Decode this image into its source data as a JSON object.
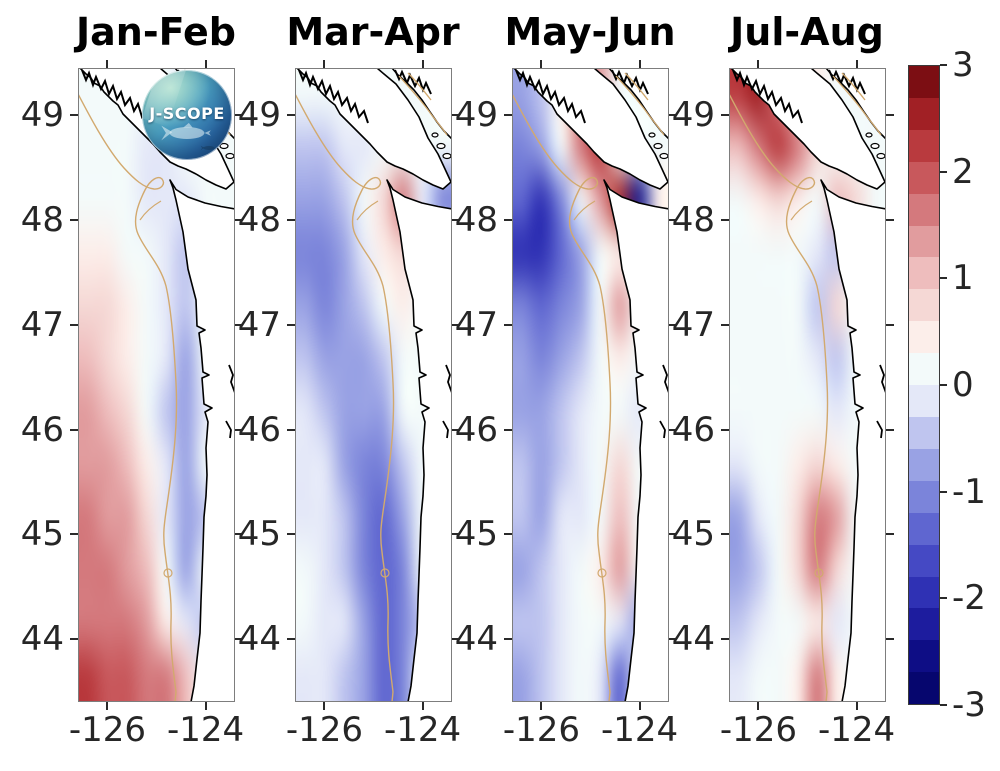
{
  "figure": {
    "background": "#ffffff"
  },
  "logo": {
    "text": "J-SCOPE"
  },
  "axes": {
    "lat_tick_values": [
      49,
      48,
      47,
      46,
      45,
      44
    ],
    "lat_tick_labels": [
      "49",
      "48",
      "47",
      "46",
      "45",
      "44"
    ],
    "lon_tick_values": [
      -126,
      -124
    ],
    "lon_tick_labels": [
      "-126",
      "-124"
    ],
    "lat_range": [
      43.4,
      49.45
    ],
    "lon_range": [
      -126.6,
      -123.4
    ]
  },
  "colorbar": {
    "min": -3,
    "max": 3,
    "tick_values": [
      3,
      2,
      1,
      0,
      -1,
      -2,
      -3
    ],
    "tick_labels": [
      "3",
      "2",
      "1",
      "0",
      "-1",
      "-2",
      "-3"
    ],
    "colors_low_to_high": [
      "#06066e",
      "#0e0d85",
      "#1d1c9e",
      "#2f31b4",
      "#4549c4",
      "#5f66d0",
      "#7b84da",
      "#99a2e4",
      "#bfc5ef",
      "#e4e8f8",
      "#f3fafa",
      "#fceeea",
      "#f5d8d5",
      "#eebdbd",
      "#e19c9e",
      "#d4797d",
      "#c8585c",
      "#b93a3e",
      "#a12025",
      "#7c0e13"
    ]
  },
  "chart_data": {
    "type": "heatmap",
    "subtype": "geographic-anomaly-maps",
    "colorbar_range": [
      -3,
      3
    ],
    "contour_step": 0.3,
    "legend_position": "right",
    "grid_lons": [
      -126.4,
      -126.0,
      -125.6,
      -125.2,
      -124.8,
      -124.4,
      -124.0,
      -123.6
    ],
    "grid_lats": [
      49.2,
      48.7,
      48.2,
      47.7,
      47.2,
      46.7,
      46.2,
      45.7,
      45.2,
      44.7,
      44.2,
      43.7
    ],
    "panels": [
      {
        "title": "Jan-Feb",
        "grid": [
          [
            0.1,
            0.1,
            0.05,
            0,
            0,
            -0.1,
            null,
            null
          ],
          [
            0.2,
            0.15,
            0.1,
            -0.1,
            -0.2,
            null,
            null,
            null
          ],
          [
            0.3,
            0.2,
            0.1,
            -0.1,
            -0.3,
            -0.3,
            0.05,
            0.05
          ],
          [
            0.5,
            0.4,
            0.2,
            0.1,
            -0.2,
            -0.4,
            null,
            null
          ],
          [
            0.8,
            0.6,
            0.4,
            0.1,
            -0.3,
            -0.5,
            null,
            null
          ],
          [
            1.0,
            0.8,
            0.5,
            0.1,
            -0.3,
            -0.6,
            null,
            null
          ],
          [
            1.2,
            1.0,
            0.7,
            0.2,
            -0.4,
            -0.7,
            -0.3,
            null
          ],
          [
            1.3,
            1.2,
            0.9,
            0.4,
            -0.3,
            -0.8,
            null,
            null
          ],
          [
            1.5,
            1.4,
            1.2,
            0.6,
            -0.2,
            -0.8,
            -0.4,
            null
          ],
          [
            1.6,
            1.6,
            1.4,
            0.9,
            0.2,
            -0.6,
            null,
            null
          ],
          [
            1.8,
            1.7,
            1.6,
            1.2,
            0.5,
            -0.3,
            -0.5,
            null
          ],
          [
            2.1,
            2.0,
            1.9,
            1.8,
            1.5,
            1.0,
            null,
            null
          ]
        ]
      },
      {
        "title": "Mar-Apr",
        "grid": [
          [
            0,
            0,
            0,
            0,
            0.1,
            null,
            null,
            null
          ],
          [
            -0.4,
            -0.5,
            -0.3,
            -0.1,
            0.2,
            null,
            null,
            null
          ],
          [
            -0.8,
            -0.7,
            -0.4,
            0,
            0.8,
            1.6,
            -0.3,
            -1.0
          ],
          [
            -1.0,
            -1.1,
            -0.8,
            -0.3,
            0.5,
            0.8,
            null,
            null
          ],
          [
            -0.8,
            -1.0,
            -0.9,
            -0.5,
            0,
            0.5,
            null,
            null
          ],
          [
            -0.5,
            -0.8,
            -0.9,
            -0.7,
            -0.4,
            0.3,
            null,
            null
          ],
          [
            -0.3,
            -0.5,
            -0.8,
            -0.9,
            -0.7,
            0.2,
            0.3,
            null
          ],
          [
            -0.2,
            -0.3,
            -0.6,
            -1.0,
            -1.1,
            -0.5,
            null,
            null
          ],
          [
            -0.1,
            -0.2,
            -0.5,
            -1.1,
            -1.3,
            -0.8,
            null,
            null
          ],
          [
            0,
            -0.1,
            -0.4,
            -1.0,
            -1.4,
            -1.0,
            null,
            null
          ],
          [
            0,
            -0.1,
            -0.3,
            -0.8,
            -1.3,
            -1.1,
            -0.5,
            null
          ],
          [
            -0.1,
            -0.2,
            -0.4,
            -0.9,
            -1.4,
            -1.2,
            null,
            null
          ]
        ]
      },
      {
        "title": "May-Jun",
        "grid": [
          [
            -0.8,
            -0.4,
            0.5,
            1.5,
            1.2,
            null,
            null,
            null
          ],
          [
            -1.2,
            -0.8,
            0.3,
            1.8,
            2.2,
            null,
            null,
            null
          ],
          [
            -1.5,
            -1.8,
            -1.0,
            0.3,
            1.2,
            2.4,
            -2.6,
            0.5
          ],
          [
            -1.8,
            -2.1,
            -1.5,
            -0.8,
            0.2,
            0.4,
            null,
            null
          ],
          [
            -1.2,
            -1.5,
            -1.2,
            -0.6,
            0.3,
            1.2,
            null,
            null
          ],
          [
            -0.8,
            -1.0,
            -0.8,
            -0.4,
            0.1,
            0.4,
            null,
            null
          ],
          [
            -0.6,
            -0.7,
            -0.5,
            -0.3,
            0,
            0.3,
            -0.2,
            null
          ],
          [
            -0.5,
            -0.8,
            -0.4,
            -0.2,
            0.2,
            0.8,
            null,
            null
          ],
          [
            -0.4,
            -0.6,
            -0.3,
            -0.1,
            0.3,
            1.0,
            null,
            null
          ],
          [
            -0.6,
            -0.5,
            -0.3,
            0,
            0.4,
            1.2,
            null,
            null
          ],
          [
            -0.5,
            -0.4,
            -0.2,
            0.1,
            0.2,
            -0.3,
            -0.8,
            null
          ],
          [
            -0.6,
            -0.5,
            -0.3,
            0,
            -0.3,
            -1.4,
            null,
            null
          ]
        ]
      },
      {
        "title": "Jul-Aug",
        "grid": [
          [
            2.2,
            2.5,
            1.8,
            0.8,
            0.5,
            null,
            null,
            null
          ],
          [
            1.0,
            1.8,
            2.3,
            1.5,
            0.8,
            null,
            null,
            null
          ],
          [
            0.3,
            0.5,
            0.8,
            0.5,
            0.3,
            1.0,
            0.8,
            0.3
          ],
          [
            0.2,
            0.2,
            0.2,
            0.1,
            -0.3,
            -0.5,
            null,
            null
          ],
          [
            0.1,
            0.1,
            0.1,
            0,
            -0.4,
            0.8,
            null,
            null
          ],
          [
            0.1,
            0.2,
            0.2,
            0.1,
            -0.3,
            -0.4,
            null,
            null
          ],
          [
            0,
            0.1,
            0.2,
            0.3,
            0.2,
            -0.2,
            0.3,
            null
          ],
          [
            -0.2,
            0.1,
            0.3,
            0.5,
            0.8,
            0.4,
            null,
            null
          ],
          [
            -0.8,
            -0.3,
            0.3,
            0.8,
            1.8,
            1.2,
            null,
            null
          ],
          [
            -0.9,
            -0.4,
            0.2,
            0.6,
            1.5,
            0.8,
            null,
            null
          ],
          [
            -0.4,
            -0.1,
            0.1,
            0.3,
            0.5,
            -0.3,
            null,
            null
          ],
          [
            -0.2,
            0,
            0.1,
            0.4,
            1.5,
            0.5,
            null,
            null
          ]
        ]
      }
    ]
  }
}
